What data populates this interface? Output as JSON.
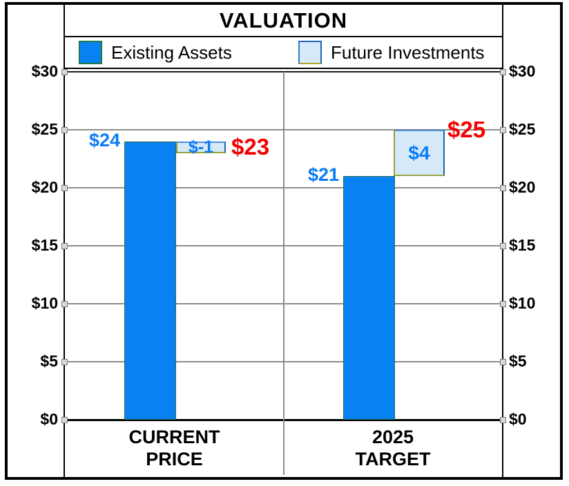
{
  "title": "VALUATION",
  "legend": {
    "items": [
      {
        "label": "Existing Assets",
        "swatch_color": "#0882f2"
      },
      {
        "label": "Future Investments",
        "swatch_color": "#d5e9f8"
      }
    ]
  },
  "y_axis": {
    "tick_labels": [
      "$30",
      "$25",
      "$20",
      "$15",
      "$10",
      "$5",
      "$0"
    ],
    "tick_values": [
      30,
      25,
      20,
      15,
      10,
      5,
      0
    ],
    "max": 30,
    "min": 0
  },
  "x_axis": {
    "category_labels": [
      "CURRENT\nPRICE",
      "2025\nTARGET"
    ]
  },
  "chart_data": {
    "type": "bar",
    "subtype": "waterfall",
    "title": "VALUATION",
    "categories": [
      "CURRENT PRICE",
      "2025 TARGET"
    ],
    "series": [
      {
        "name": "Existing Assets",
        "color": "#0882f2",
        "values": [
          24,
          21
        ]
      },
      {
        "name": "Future Investments",
        "color": "#d5e9f8",
        "values": [
          -1,
          4
        ]
      }
    ],
    "totals": [
      23,
      25
    ],
    "base_labels": [
      "$24",
      "$21"
    ],
    "delta_labels": [
      "$-1",
      "$4"
    ],
    "total_labels": [
      "$23",
      "$25"
    ],
    "ylim": [
      0,
      30
    ],
    "ytick_step": 5,
    "value_format": "$",
    "grid": true,
    "legend_position": "top",
    "base_label_color": "#0b7cf5",
    "total_label_color": "#f40000",
    "grid_color": "#8c8c8c"
  }
}
